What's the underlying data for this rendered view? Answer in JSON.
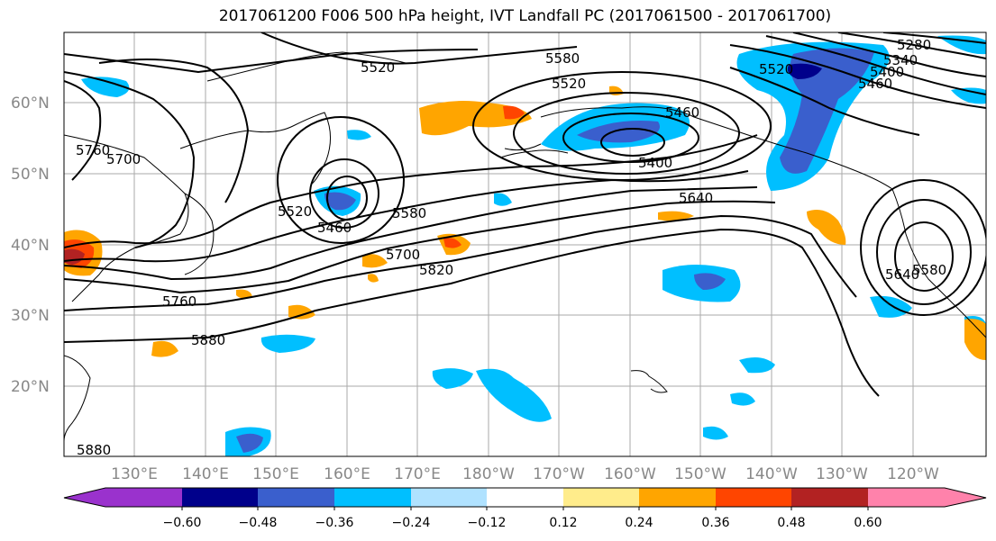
{
  "title": "2017061200 F006 500 hPa height, IVT Landfall PC (2017061500 - 2017061700)",
  "map": {
    "lat_labels": [
      "60°N",
      "50°N",
      "40°N",
      "30°N",
      "20°N"
    ],
    "lon_labels": [
      "130°E",
      "140°E",
      "150°E",
      "160°E",
      "170°E",
      "180°W",
      "170°W",
      "160°W",
      "150°W",
      "140°W",
      "130°W",
      "120°W"
    ],
    "contour_labels": [
      "5520",
      "5580",
      "5520",
      "5460",
      "5400",
      "5640",
      "5580",
      "5700",
      "5820",
      "5760",
      "5880",
      "5760",
      "5700",
      "5520",
      "5460",
      "5280",
      "5340",
      "5400",
      "5460",
      "5520",
      "5640",
      "5580",
      "5880"
    ]
  },
  "colorbar": {
    "colors": [
      "#9a32cd",
      "#00008b",
      "#3a5fcd",
      "#00bfff",
      "#b0e2ff",
      "#ffffff",
      "#ffec8b",
      "#ffa500",
      "#ff4500",
      "#b22222",
      "#ff82ab"
    ],
    "tick_labels": [
      "−0.60",
      "−0.48",
      "−0.36",
      "−0.24",
      "−0.12",
      "0.12",
      "0.24",
      "0.36",
      "0.48",
      "0.60"
    ]
  },
  "colors": {
    "grid": "#aaaaaa",
    "contour": "#000000",
    "ocean_bg": "#ffffff"
  }
}
